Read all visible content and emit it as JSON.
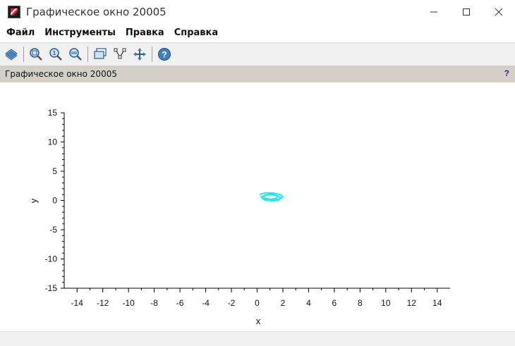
{
  "window": {
    "title": "Графическое окно 20005"
  },
  "menu": {
    "items": [
      "Файл",
      "Инструменты",
      "Правка",
      "Справка"
    ]
  },
  "toolbar": {
    "buttons": [
      "rotate-icon",
      "zoom-region-icon",
      "zoom-reset-icon",
      "zoom-out-icon",
      "datatip-icon",
      "edit-curve-icon",
      "pan-icon",
      "help-icon"
    ]
  },
  "info_bar": {
    "label": "Графическое окно 20005",
    "help": "?"
  },
  "colors": {
    "curve": "#22e6f0",
    "info_bg": "#d4d0c8"
  },
  "chart_data": {
    "type": "line",
    "xlabel": "x",
    "ylabel": "y",
    "xlim": [
      -15,
      15
    ],
    "ylim": [
      -15,
      15
    ],
    "x_ticks": [
      -14,
      -12,
      -10,
      -8,
      -6,
      -4,
      -2,
      0,
      2,
      4,
      6,
      8,
      10,
      12,
      14
    ],
    "y_ticks": [
      -15,
      -10,
      -5,
      0,
      5,
      10,
      15
    ],
    "grid": false,
    "series": [
      {
        "color": "#22e6f0",
        "x": [
          0.2,
          0.6,
          1.2,
          1.8,
          2.0,
          1.7,
          1.1,
          0.5,
          0.3,
          0.7,
          1.2,
          1.6,
          1.5,
          1.0,
          0.6,
          0.5,
          0.9,
          1.4,
          1.8,
          1.7,
          1.2,
          0.6,
          0.3
        ],
        "y": [
          1.0,
          1.3,
          1.3,
          1.0,
          0.6,
          0.2,
          0.0,
          0.2,
          0.6,
          1.0,
          1.1,
          0.8,
          0.4,
          0.2,
          0.4,
          0.8,
          1.0,
          0.9,
          0.5,
          0.1,
          -0.1,
          0.1,
          0.6
        ]
      }
    ]
  }
}
